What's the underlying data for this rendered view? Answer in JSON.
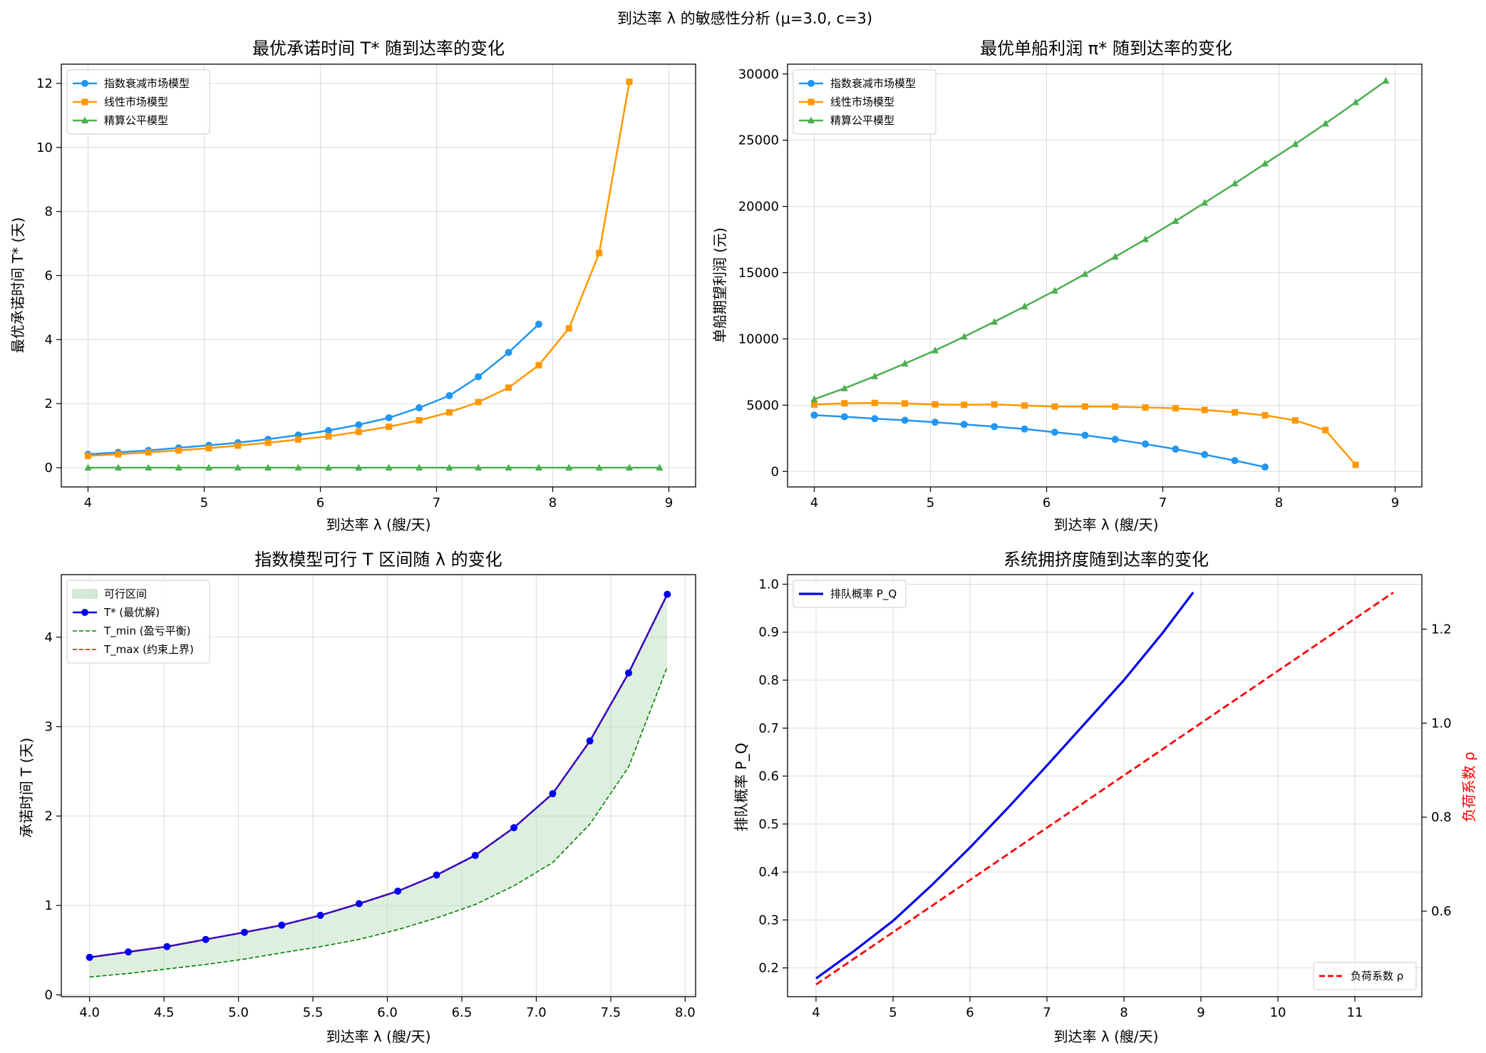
{
  "suptitle": "到达率 λ 的敏感性分析  (μ=3.0, c=3)",
  "colors": {
    "exp": "#2196F3",
    "lin": "#FF9800",
    "fair": "#4CAF50",
    "pq": "#0000ee",
    "rho": "#ff0000",
    "band": "#b9dcb9",
    "tmin": "#008000",
    "tmax": "#ff0000"
  },
  "chart_data": [
    {
      "type": "line",
      "title": "最优承诺时间 T* 随到达率的变化",
      "xlabel": "到达率 λ (艘/天)",
      "ylabel": "最优承诺时间 T* (天)",
      "xlim": [
        3.77,
        9.23
      ],
      "ylim": [
        -0.6,
        12.6
      ],
      "xticks": [
        "4",
        "5",
        "6",
        "7",
        "8",
        "9"
      ],
      "yticks": [
        "0",
        "2",
        "4",
        "6",
        "8",
        "10",
        "12"
      ],
      "grid": true,
      "legend": "top-left",
      "series": [
        {
          "name": "指数衰减市场模型",
          "marker": "circle",
          "color_key": "exp",
          "x": [
            4.0,
            4.26,
            4.52,
            4.78,
            5.04,
            5.29,
            5.55,
            5.81,
            6.07,
            6.33,
            6.59,
            6.85,
            7.11,
            7.36,
            7.62,
            7.88
          ],
          "y": [
            0.42,
            0.48,
            0.54,
            0.62,
            0.7,
            0.78,
            0.89,
            1.02,
            1.16,
            1.34,
            1.56,
            1.87,
            2.25,
            2.84,
            3.6,
            4.48
          ]
        },
        {
          "name": "线性市场模型",
          "marker": "square",
          "color_key": "lin",
          "x": [
            4.0,
            4.26,
            4.52,
            4.78,
            5.04,
            5.29,
            5.55,
            5.81,
            6.07,
            6.33,
            6.59,
            6.85,
            7.11,
            7.36,
            7.62,
            7.88,
            8.14,
            8.4,
            8.66
          ],
          "y": [
            0.37,
            0.42,
            0.48,
            0.54,
            0.61,
            0.69,
            0.78,
            0.88,
            0.98,
            1.12,
            1.28,
            1.48,
            1.73,
            2.05,
            2.5,
            3.2,
            4.35,
            6.7,
            12.05
          ]
        },
        {
          "name": "精算公平模型",
          "marker": "triangle",
          "color_key": "fair",
          "x": [
            4.0,
            4.26,
            4.52,
            4.78,
            5.04,
            5.29,
            5.55,
            5.81,
            6.07,
            6.33,
            6.59,
            6.85,
            7.11,
            7.36,
            7.62,
            7.88,
            8.14,
            8.4,
            8.66,
            8.92
          ],
          "y": [
            0,
            0,
            0,
            0,
            0,
            0,
            0,
            0,
            0,
            0,
            0,
            0,
            0,
            0,
            0,
            0,
            0,
            0,
            0,
            0
          ]
        }
      ]
    },
    {
      "type": "line",
      "title": "最优单船利润 π* 随到达率的变化",
      "xlabel": "到达率 λ (艘/天)",
      "ylabel": "单船期望利润 (元)",
      "xlim": [
        3.77,
        9.23
      ],
      "ylim": [
        -1170,
        30740
      ],
      "xticks": [
        "4",
        "5",
        "6",
        "7",
        "8",
        "9"
      ],
      "yticks": [
        "0",
        "5000",
        "10000",
        "15000",
        "20000",
        "25000",
        "30000"
      ],
      "grid": true,
      "legend": "top-left",
      "series": [
        {
          "name": "指数衰减市场模型",
          "marker": "circle",
          "color_key": "exp",
          "x": [
            4.0,
            4.26,
            4.52,
            4.78,
            5.04,
            5.29,
            5.55,
            5.81,
            6.07,
            6.33,
            6.59,
            6.85,
            7.11,
            7.36,
            7.62,
            7.88
          ],
          "y": [
            4250,
            4130,
            3980,
            3860,
            3710,
            3550,
            3380,
            3200,
            2960,
            2730,
            2420,
            2070,
            1680,
            1270,
            820,
            330
          ]
        },
        {
          "name": "线性市场模型",
          "marker": "square",
          "color_key": "lin",
          "x": [
            4.0,
            4.26,
            4.52,
            4.78,
            5.04,
            5.29,
            5.55,
            5.81,
            6.07,
            6.33,
            6.59,
            6.85,
            7.11,
            7.36,
            7.62,
            7.88,
            8.14,
            8.4,
            8.66
          ],
          "y": [
            5050,
            5140,
            5170,
            5130,
            5060,
            5030,
            5060,
            4970,
            4900,
            4900,
            4890,
            4830,
            4770,
            4640,
            4460,
            4240,
            3850,
            3120,
            500
          ]
        },
        {
          "name": "精算公平模型",
          "marker": "triangle",
          "color_key": "fair",
          "x": [
            4.0,
            4.26,
            4.52,
            4.78,
            5.04,
            5.29,
            5.55,
            5.81,
            6.07,
            6.33,
            6.59,
            6.85,
            7.11,
            7.36,
            7.62,
            7.88,
            8.14,
            8.4,
            8.66,
            8.92
          ],
          "y": [
            5450,
            6270,
            7180,
            8140,
            9130,
            10170,
            11290,
            12450,
            13640,
            14900,
            16200,
            17520,
            18900,
            20280,
            21730,
            23230,
            24700,
            26250,
            27860,
            29480
          ]
        }
      ]
    },
    {
      "type": "area",
      "title": "指数模型可行 T 区间随 λ 的变化",
      "xlabel": "到达率 λ (艘/天)",
      "ylabel": "承诺时间 T (天)",
      "xlim": [
        3.81,
        8.07
      ],
      "ylim": [
        -0.02,
        4.7
      ],
      "xticks": [
        "4.0",
        "4.5",
        "5.0",
        "5.5",
        "6.0",
        "6.5",
        "7.0",
        "7.5",
        "8.0"
      ],
      "yticks": [
        "0",
        "1",
        "2",
        "3",
        "4"
      ],
      "grid": true,
      "legend": "top-left",
      "x": [
        4.0,
        4.26,
        4.52,
        4.78,
        5.04,
        5.29,
        5.55,
        5.81,
        6.07,
        6.33,
        6.59,
        6.85,
        7.11,
        7.36,
        7.62,
        7.88
      ],
      "series": [
        {
          "name": "可行区间",
          "kind": "band",
          "color_key": "band"
        },
        {
          "name": "T* (最优解)",
          "kind": "line",
          "color_key": "pq",
          "y": [
            0.42,
            0.48,
            0.54,
            0.62,
            0.7,
            0.78,
            0.89,
            1.02,
            1.16,
            1.34,
            1.56,
            1.87,
            2.25,
            2.84,
            3.6,
            4.48
          ]
        },
        {
          "name": "T_min (盈亏平衡)",
          "kind": "dashed",
          "color_key": "tmin",
          "y": [
            0.2,
            0.24,
            0.29,
            0.34,
            0.4,
            0.47,
            0.54,
            0.62,
            0.73,
            0.86,
            1.01,
            1.22,
            1.48,
            1.91,
            2.55,
            3.67
          ]
        },
        {
          "name": "T_max (约束上界)",
          "kind": "dashed",
          "color_key": "tmax",
          "y": [
            0.42,
            0.48,
            0.54,
            0.62,
            0.7,
            0.78,
            0.89,
            1.02,
            1.16,
            1.34,
            1.56,
            1.87,
            2.25,
            2.84,
            3.6,
            4.48
          ]
        }
      ]
    },
    {
      "type": "line",
      "title": "系统拥挤度随到达率的变化",
      "xlabel": "到达率 λ (艘/天)",
      "ylabel": "排队概率 P_Q",
      "ylabel_right": "负荷系数 ρ",
      "xlim": [
        3.63,
        11.87
      ],
      "ylim": [
        0.14,
        1.02
      ],
      "ylim_right": [
        0.418,
        1.316
      ],
      "xticks": [
        "4",
        "5",
        "6",
        "7",
        "8",
        "9",
        "10",
        "11"
      ],
      "yticks": [
        "0.2",
        "0.3",
        "0.4",
        "0.5",
        "0.6",
        "0.7",
        "0.8",
        "0.9",
        "1.0"
      ],
      "yticks_right": [
        "0.6",
        "0.8",
        "1.0",
        "1.2"
      ],
      "grid": true,
      "legend": "top-left",
      "legend_right": "bottom-right",
      "series": [
        {
          "name": "排队概率 P_Q",
          "axis": "left",
          "kind": "line",
          "color_key": "pq",
          "x": [
            4.0,
            4.5,
            5.0,
            5.5,
            6.0,
            6.5,
            7.0,
            7.5,
            8.0,
            8.5,
            8.9
          ],
          "y": [
            0.178,
            0.236,
            0.298,
            0.372,
            0.451,
            0.535,
            0.622,
            0.711,
            0.8,
            0.898,
            0.983
          ]
        },
        {
          "name": "负荷系数 ρ",
          "axis": "right",
          "kind": "dashed",
          "color_key": "rho",
          "x": [
            4.0,
            11.5
          ],
          "y": [
            0.444,
            1.278
          ]
        }
      ]
    }
  ]
}
